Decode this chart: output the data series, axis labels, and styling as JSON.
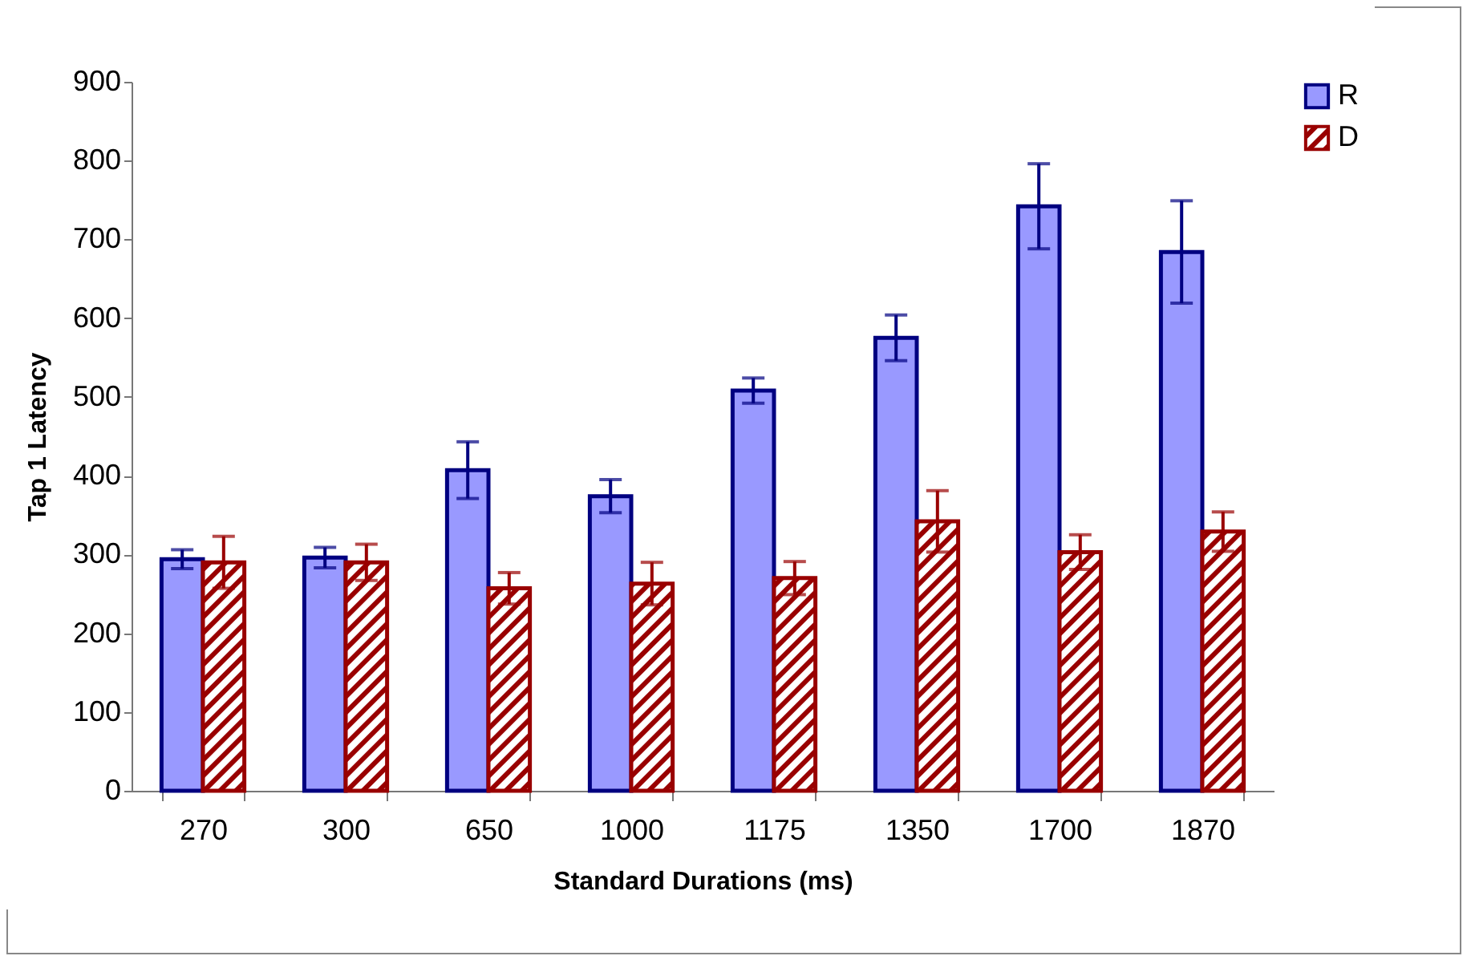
{
  "chart_data": {
    "type": "bar",
    "xlabel": "Standard Durations (ms)",
    "ylabel": "Tap 1 Latency",
    "categories": [
      "270",
      "300",
      "650",
      "1000",
      "1175",
      "1350",
      "1700",
      "1870"
    ],
    "series": [
      {
        "name": "R",
        "color": "#9999ff",
        "values": [
          294,
          296,
          407,
          374,
          508,
          575,
          742,
          684
        ],
        "errors": [
          12,
          13,
          36,
          21,
          16,
          29,
          54,
          65
        ]
      },
      {
        "name": "D",
        "color": "#990000",
        "values": [
          290,
          290,
          257,
          263,
          270,
          342,
          303,
          329
        ],
        "errors": [
          33,
          23,
          20,
          27,
          21,
          39,
          22,
          25
        ]
      }
    ],
    "ylim": [
      0,
      900
    ],
    "yticks": [
      0,
      100,
      200,
      300,
      400,
      500,
      600,
      700,
      800,
      900
    ],
    "grid": false,
    "legend": "right"
  }
}
